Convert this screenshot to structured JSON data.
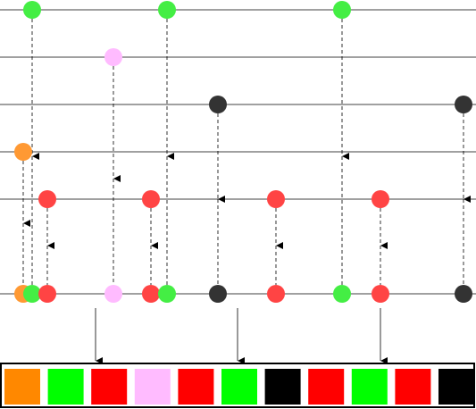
{
  "streams": [
    {
      "marbles": [
        "#44ee44",
        "#44ee44",
        "#44ee44"
      ]
    },
    {
      "marbles": [
        "#ffbbff"
      ]
    },
    {
      "marbles": [
        "#333333",
        "#333333"
      ]
    },
    {
      "marbles": [
        "#ff9933"
      ]
    },
    {
      "marbles": [
        "#ff4444",
        "#ff4444",
        "#ff4444",
        "#ff4444"
      ]
    }
  ],
  "output": {
    "marbles": [
      "#ff9933",
      "#44ee44",
      "#ff4444",
      "#ffbbff",
      "#ff4444",
      "#44ee44",
      "#333333",
      "#ff4444",
      "#44ee44",
      "#ff4444",
      "#333333"
    ]
  },
  "result": {
    "boxes": [
      "#ff8800",
      "#00ff00",
      "#ff0000",
      "#ffbbff",
      "#ff0000",
      "#00ff00",
      "#000000",
      "#ff0000",
      "#00ff00",
      "#ff0000",
      "#000000"
    ]
  }
}
